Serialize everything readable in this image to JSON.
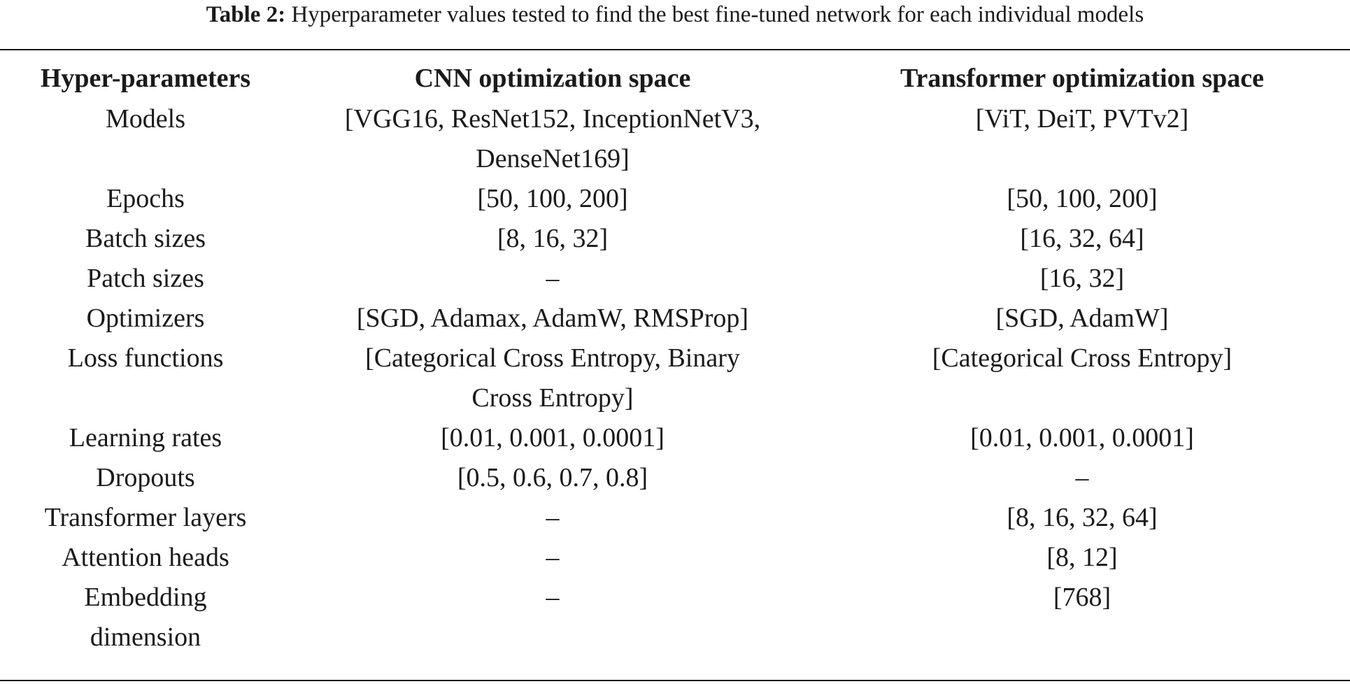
{
  "caption": {
    "label": "Table 2:",
    "text": "Hyperparameter values tested to find the best fine-tuned network for each individual models"
  },
  "table": {
    "headers": [
      "Hyper-parameters",
      "CNN optimization space",
      "Transformer optimization space"
    ],
    "rows": [
      {
        "name": "Models",
        "cnn": "[VGG16, ResNet152, InceptionNetV3, DenseNet169]",
        "transformer": "[ViT, DeiT, PVTv2]"
      },
      {
        "name": "Epochs",
        "cnn": "[50, 100, 200]",
        "transformer": "[50, 100, 200]"
      },
      {
        "name": "Batch sizes",
        "cnn": "[8, 16, 32]",
        "transformer": "[16, 32, 64]"
      },
      {
        "name": "Patch sizes",
        "cnn": "–",
        "transformer": "[16, 32]"
      },
      {
        "name": "Optimizers",
        "cnn": "[SGD, Adamax, AdamW, RMSProp]",
        "transformer": "[SGD, AdamW]"
      },
      {
        "name": "Loss functions",
        "cnn": "[Categorical Cross Entropy, Binary Cross Entropy]",
        "transformer": "[Categorical Cross Entropy]"
      },
      {
        "name": "Learning rates",
        "cnn": "[0.01, 0.001, 0.0001]",
        "transformer": "[0.01, 0.001, 0.0001]"
      },
      {
        "name": "Dropouts",
        "cnn": "[0.5, 0.6, 0.7, 0.8]",
        "transformer": "–"
      },
      {
        "name": "Transformer layers",
        "cnn": "–",
        "transformer": "[8, 16, 32, 64]"
      },
      {
        "name": "Attention heads",
        "cnn": "–",
        "transformer": "[8, 12]"
      },
      {
        "name": "Embedding dimension",
        "cnn": "–",
        "transformer": "[768]"
      }
    ]
  }
}
